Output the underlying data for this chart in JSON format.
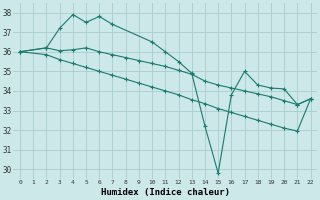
{
  "xlabel": "Humidex (Indice chaleur)",
  "background_color": "#cce8e8",
  "grid_color": "#aacccc",
  "line_color": "#1a7a6e",
  "xlim": [
    -0.5,
    22.5
  ],
  "ylim": [
    29.5,
    38.5
  ],
  "yticks": [
    30,
    31,
    32,
    33,
    34,
    35,
    36,
    37,
    38
  ],
  "xticks": [
    0,
    1,
    2,
    3,
    4,
    5,
    6,
    7,
    8,
    9,
    10,
    11,
    12,
    13,
    14,
    15,
    16,
    17,
    18,
    19,
    20,
    21,
    22
  ],
  "series1_x": [
    0,
    2,
    3,
    4,
    5,
    6,
    7,
    10,
    11,
    12,
    13,
    14,
    15,
    16,
    17,
    18,
    19,
    20,
    21,
    22
  ],
  "series1_y": [
    36.0,
    36.2,
    37.2,
    37.9,
    37.5,
    37.8,
    37.4,
    36.5,
    36.0,
    35.5,
    34.9,
    32.2,
    29.8,
    33.8,
    35.0,
    34.3,
    34.15,
    34.1,
    33.3,
    33.6
  ],
  "series2_x": [
    0,
    2,
    3,
    4,
    5,
    6,
    7,
    8,
    9,
    10,
    11,
    12,
    13,
    14,
    15,
    16,
    17,
    18,
    19,
    20,
    21,
    22
  ],
  "series2_y": [
    36.0,
    36.2,
    36.05,
    36.1,
    36.2,
    36.0,
    35.85,
    35.7,
    35.55,
    35.4,
    35.25,
    35.05,
    34.85,
    34.5,
    34.3,
    34.15,
    34.0,
    33.85,
    33.7,
    33.5,
    33.3,
    33.6
  ],
  "series3_x": [
    0,
    2,
    3,
    4,
    5,
    6,
    7,
    8,
    9,
    10,
    11,
    12,
    13,
    14,
    15,
    16,
    17,
    18,
    19,
    20,
    21,
    22
  ],
  "series3_y": [
    36.0,
    35.85,
    35.6,
    35.4,
    35.2,
    35.0,
    34.8,
    34.6,
    34.4,
    34.2,
    34.0,
    33.8,
    33.55,
    33.35,
    33.1,
    32.9,
    32.7,
    32.5,
    32.3,
    32.1,
    31.95,
    33.6
  ]
}
